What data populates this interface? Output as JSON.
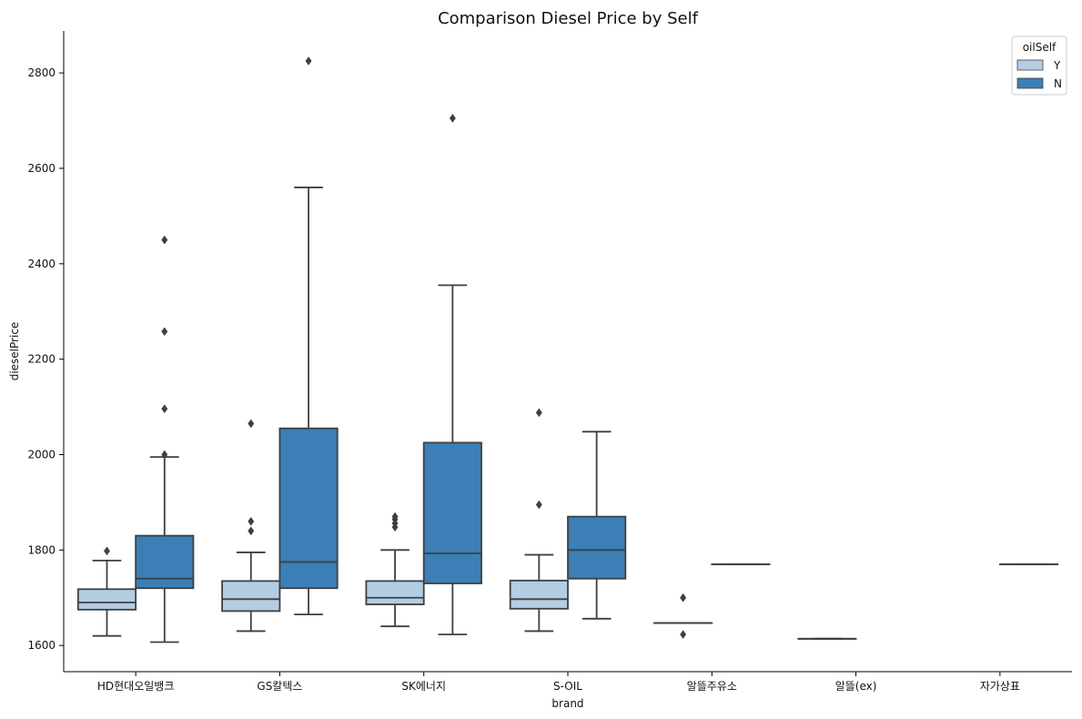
{
  "chart_data": {
    "type": "box",
    "title": "Comparison Diesel Price by Self",
    "xlabel": "brand",
    "ylabel": "dieselPrice",
    "ylim": [
      1545,
      2888
    ],
    "yticks": [
      1600,
      1800,
      2000,
      2200,
      2400,
      2600,
      2800
    ],
    "grid": false,
    "categories": [
      "HD현대오일뱅크",
      "GS칼텍스",
      "SK에너지",
      "S-OIL",
      "알뜰주유소",
      "알뜰(ex)",
      "자가상표"
    ],
    "legend": {
      "title": "oilSelf",
      "placement": "top-right"
    },
    "series": [
      {
        "name": "Y",
        "color": "#b3cde3",
        "boxes": [
          {
            "category": "HD현대오일뱅크",
            "whislo": 1620,
            "q1": 1675,
            "med": 1690,
            "q3": 1718,
            "whishi": 1778,
            "fliers": [
              1798
            ]
          },
          {
            "category": "GS칼텍스",
            "whislo": 1630,
            "q1": 1672,
            "med": 1697,
            "q3": 1735,
            "whishi": 1795,
            "fliers": [
              1840,
              1860,
              2065
            ]
          },
          {
            "category": "SK에너지",
            "whislo": 1640,
            "q1": 1686,
            "med": 1700,
            "q3": 1735,
            "whishi": 1800,
            "fliers": [
              1848,
              1856,
              1864,
              1870
            ]
          },
          {
            "category": "S-OIL",
            "whislo": 1630,
            "q1": 1677,
            "med": 1697,
            "q3": 1736,
            "whishi": 1790,
            "fliers": [
              1895,
              2088
            ]
          },
          {
            "category": "알뜰주유소",
            "whislo": 1647,
            "q1": 1647,
            "med": 1647,
            "q3": 1647,
            "whishi": 1647,
            "fliers": [
              1623,
              1700
            ]
          },
          {
            "category": "알뜰(ex)",
            "whislo": 1614,
            "q1": 1614,
            "med": 1614,
            "q3": 1614,
            "whishi": 1614,
            "fliers": []
          },
          null
        ]
      },
      {
        "name": "N",
        "color": "#3b7fb6",
        "boxes": [
          {
            "category": "HD현대오일뱅크",
            "whislo": 1607,
            "q1": 1720,
            "med": 1740,
            "q3": 1830,
            "whishi": 1995,
            "fliers": [
              2000,
              2096,
              2258,
              2450
            ]
          },
          {
            "category": "GS칼텍스",
            "whislo": 1665,
            "q1": 1720,
            "med": 1775,
            "q3": 2055,
            "whishi": 2560,
            "fliers": [
              2825
            ]
          },
          {
            "category": "SK에너지",
            "whislo": 1623,
            "q1": 1730,
            "med": 1793,
            "q3": 2025,
            "whishi": 2355,
            "fliers": [
              2705
            ]
          },
          {
            "category": "S-OIL",
            "whislo": 1656,
            "q1": 1740,
            "med": 1800,
            "q3": 1870,
            "whishi": 2048,
            "fliers": []
          },
          {
            "category": "알뜰주유소",
            "whislo": 1770,
            "q1": 1770,
            "med": 1770,
            "q3": 1770,
            "whishi": 1770,
            "fliers": []
          },
          null,
          {
            "category": "자가상표",
            "whislo": 1770,
            "q1": 1770,
            "med": 1770,
            "q3": 1770,
            "whishi": 1770,
            "fliers": []
          }
        ]
      }
    ]
  }
}
